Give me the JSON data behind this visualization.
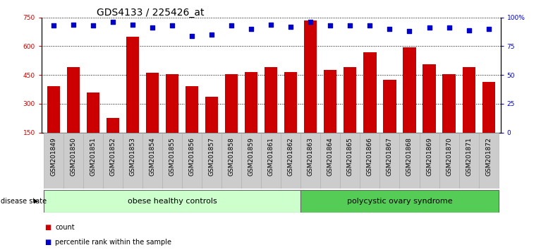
{
  "title": "GDS4133 / 225426_at",
  "samples": [
    "GSM201849",
    "GSM201850",
    "GSM201851",
    "GSM201852",
    "GSM201853",
    "GSM201854",
    "GSM201855",
    "GSM201856",
    "GSM201857",
    "GSM201858",
    "GSM201859",
    "GSM201861",
    "GSM201862",
    "GSM201863",
    "GSM201864",
    "GSM201865",
    "GSM201866",
    "GSM201867",
    "GSM201868",
    "GSM201869",
    "GSM201870",
    "GSM201871",
    "GSM201872"
  ],
  "counts": [
    390,
    490,
    360,
    225,
    650,
    460,
    455,
    390,
    335,
    455,
    465,
    490,
    465,
    735,
    475,
    490,
    570,
    425,
    595,
    505,
    455,
    490,
    415
  ],
  "percentiles": [
    93,
    94,
    93,
    96,
    94,
    91,
    93,
    84,
    85,
    93,
    90,
    94,
    92,
    96,
    93,
    93,
    93,
    90,
    88,
    91,
    91,
    89,
    90
  ],
  "group1_label": "obese healthy controls",
  "group2_label": "polycystic ovary syndrome",
  "group1_count": 13,
  "group2_count": 10,
  "ylim_left": [
    150,
    750
  ],
  "ylim_right": [
    0,
    100
  ],
  "yticks_left": [
    150,
    300,
    450,
    600,
    750
  ],
  "yticks_right": [
    0,
    25,
    50,
    75,
    100
  ],
  "bar_color": "#cc0000",
  "dot_color": "#0000cc",
  "group1_bg": "#ccffcc",
  "group2_bg": "#55cc55",
  "tick_bg": "#cccccc",
  "title_fontsize": 10,
  "tick_fontsize": 6.5,
  "label_fontsize": 8,
  "small_fontsize": 7
}
